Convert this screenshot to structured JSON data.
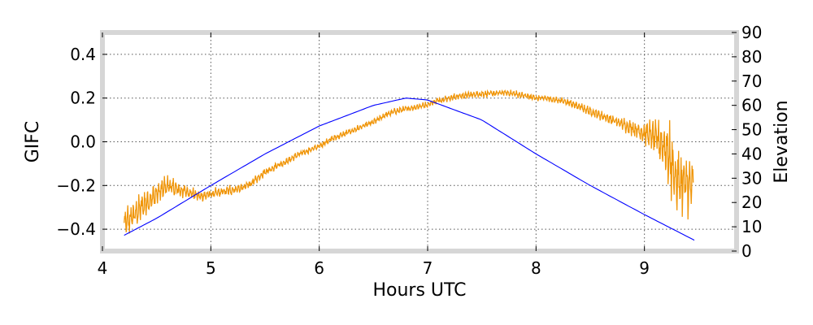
{
  "chart_data": {
    "type": "line",
    "title": "",
    "xlabel": "Hours UTC",
    "ylabel": "GIFC",
    "ylabel_right": "Elevation",
    "xlim": [
      4,
      9.85
    ],
    "ylim": [
      -0.5,
      0.5
    ],
    "ylim_right": [
      0,
      90
    ],
    "x_ticks": [
      "4",
      "5",
      "6",
      "7",
      "8",
      "9"
    ],
    "y_ticks": [
      "0.4",
      "0.2",
      "0.0",
      "−0.2",
      "−0.4"
    ],
    "y_right_ticks": [
      "90",
      "80",
      "70",
      "60",
      "50",
      "40",
      "30",
      "20",
      "10",
      "0"
    ],
    "grid": true,
    "series": [
      {
        "axis": "left",
        "color": "#f0960a",
        "x": [
          4.2,
          4.3,
          4.4,
          4.5,
          4.6,
          4.7,
          4.8,
          4.9,
          5.0,
          5.1,
          5.2,
          5.3,
          5.4,
          5.5,
          5.6,
          5.7,
          5.8,
          5.9,
          6.0,
          6.1,
          6.2,
          6.3,
          6.4,
          6.5,
          6.6,
          6.7,
          6.8,
          6.9,
          7.0,
          7.1,
          7.2,
          7.3,
          7.4,
          7.5,
          7.6,
          7.7,
          7.8,
          7.9,
          8.0,
          8.1,
          8.2,
          8.3,
          8.4,
          8.5,
          8.6,
          8.7,
          8.8,
          8.9,
          9.0,
          9.1,
          9.2,
          9.3,
          9.4,
          9.45
        ],
        "y": [
          -0.38,
          -0.33,
          -0.28,
          -0.24,
          -0.2,
          -0.22,
          -0.23,
          -0.25,
          -0.24,
          -0.23,
          -0.22,
          -0.21,
          -0.18,
          -0.14,
          -0.11,
          -0.09,
          -0.06,
          -0.04,
          -0.02,
          0.01,
          0.03,
          0.05,
          0.07,
          0.09,
          0.12,
          0.14,
          0.15,
          0.16,
          0.17,
          0.19,
          0.2,
          0.21,
          0.215,
          0.22,
          0.22,
          0.225,
          0.22,
          0.21,
          0.2,
          0.2,
          0.19,
          0.18,
          0.16,
          0.14,
          0.12,
          0.1,
          0.08,
          0.06,
          0.04,
          0.02,
          -0.03,
          -0.18,
          -0.2,
          -0.2
        ],
        "noise_amplitude": [
          0.07,
          0.07,
          0.065,
          0.06,
          0.05,
          0.04,
          0.03,
          0.025,
          0.025,
          0.025,
          0.025,
          0.02,
          0.02,
          0.018,
          0.018,
          0.015,
          0.015,
          0.015,
          0.015,
          0.015,
          0.015,
          0.015,
          0.015,
          0.015,
          0.015,
          0.015,
          0.015,
          0.015,
          0.015,
          0.015,
          0.015,
          0.015,
          0.015,
          0.015,
          0.015,
          0.015,
          0.015,
          0.015,
          0.015,
          0.015,
          0.015,
          0.015,
          0.018,
          0.02,
          0.022,
          0.025,
          0.03,
          0.035,
          0.05,
          0.08,
          0.14,
          0.17,
          0.14,
          0.1
        ]
      },
      {
        "axis": "right",
        "color": "#0000ff",
        "x": [
          4.2,
          4.5,
          5.0,
          5.5,
          6.0,
          6.5,
          6.8,
          7.0,
          7.5,
          8.0,
          8.5,
          9.0,
          9.46
        ],
        "y": [
          6.5,
          13.5,
          27,
          40,
          51.5,
          60,
          63,
          62.2,
          54,
          40,
          27,
          15,
          4.5
        ]
      }
    ]
  }
}
